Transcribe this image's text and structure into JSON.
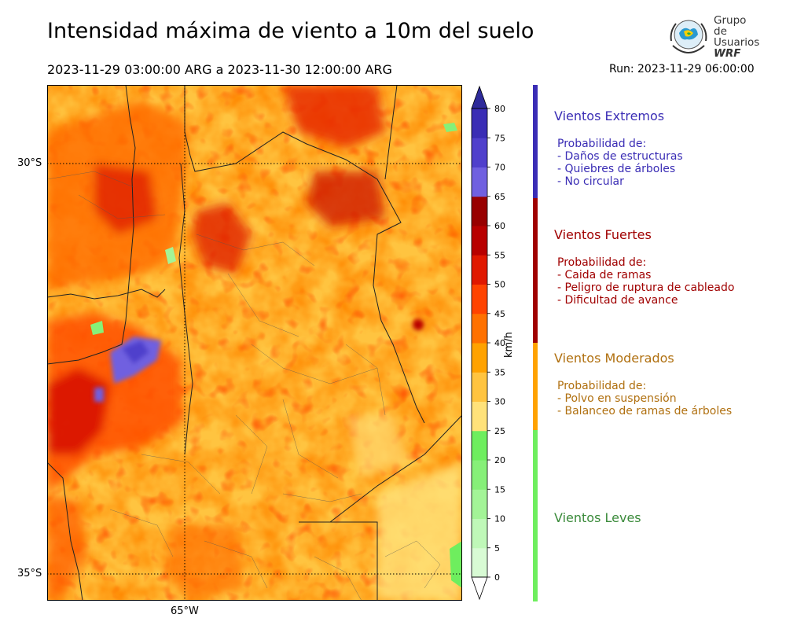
{
  "header": {
    "title": "Intensidad máxima de viento a 10m del suelo",
    "period": "2023-11-29 03:00:00 ARG  a  2023-11-30 12:00:00 ARG",
    "run": "Run: 2023-11-29 06:00:00"
  },
  "logo": {
    "line1": "Grupo de",
    "line2": "Usuarios",
    "line3": "WRF"
  },
  "map": {
    "lat_labels": [
      "30°S",
      "35°S"
    ],
    "lon_labels": [
      "65°W"
    ],
    "gridlines": "dotted"
  },
  "colorbar": {
    "unit": "km/h",
    "ticks": [
      "0",
      "5",
      "10",
      "15",
      "20",
      "25",
      "30",
      "35",
      "40",
      "45",
      "50",
      "55",
      "60",
      "65",
      "70",
      "75",
      "80"
    ],
    "colors": [
      "#effdee",
      "#d8fbd4",
      "#bff8b8",
      "#a3f497",
      "#86f078",
      "#6eee5e",
      "#ffe27a",
      "#ffc440",
      "#ffa200",
      "#ff7100",
      "#ff4300",
      "#e01800",
      "#b80000",
      "#980000",
      "#7060e0",
      "#5040cc",
      "#3a2db5"
    ],
    "extend": "both",
    "over_color": "#2e2a9a",
    "under_color": "#ffffff"
  },
  "categories": [
    {
      "title": "Vientos Extremos",
      "prob_header": "Probabilidad de:",
      "items": [
        "- Daños de estructuras",
        "- Quiebres de árboles",
        "- No circular"
      ],
      "color": "#3a2db5"
    },
    {
      "title": "Vientos Fuertes",
      "prob_header": "Probabilidad de:",
      "items": [
        "- Caida de ramas",
        "- Peligro de ruptura de cableado",
        "- Dificultad de avance"
      ],
      "color": "#a00000"
    },
    {
      "title": "Vientos Moderados",
      "prob_header": "Probabilidad de:",
      "items": [
        "- Polvo en suspensión",
        "- Balanceo de ramas de árboles"
      ],
      "color": "#b07010"
    },
    {
      "title": "Vientos Leves",
      "prob_header": "",
      "items": [],
      "color": "#3a8a3a"
    }
  ],
  "category_bar_colors": [
    "#3a2db5",
    "#a00000",
    "#ffa200",
    "#6eee5e"
  ]
}
